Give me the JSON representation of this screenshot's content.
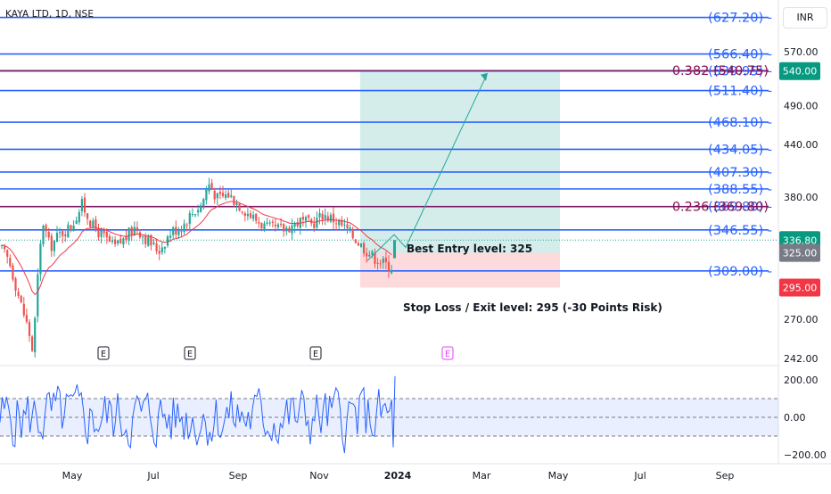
{
  "header": {
    "title": "KAYA LTD, 1D, NSE",
    "currency": "INR"
  },
  "colors": {
    "level_line": "#2962ff",
    "fib_line": "#880e4f",
    "candle_up": "#26a69a",
    "candle_down": "#ef5350",
    "ema": "#f23645",
    "target_zone": "#26a69a",
    "stop_zone": "#f23645",
    "oscillator": "#2962ff",
    "earnings_future": "#e040fb"
  },
  "chart_data": {
    "type": "candlestick",
    "xaxis_labels": [
      "May",
      "Jul",
      "Sep",
      "Nov",
      "2024",
      "Mar",
      "May",
      "Jul",
      "Sep"
    ],
    "price_axis_ticks": [
      "570.00",
      "490.00",
      "440.00",
      "380.00",
      "270.00",
      "242.00"
    ],
    "scale": "log",
    "levels": [
      "(627.20)",
      "(566.40)",
      "(539.95)",
      "(511.40)",
      "(468.10)",
      "(434.05)",
      "(407.30)",
      "(388.55)",
      "(369.80)",
      "(346.55)",
      "(309.00)"
    ],
    "level_values": [
      627.2,
      566.4,
      539.95,
      511.4,
      468.1,
      434.05,
      407.3,
      388.55,
      369.8,
      346.55,
      309.0
    ],
    "fib_levels": [
      {
        "label": "0.382 (540.75)",
        "value": 540.75
      },
      {
        "label": "0.236 (369.80)",
        "value": 369.8
      }
    ],
    "price_tags": [
      {
        "label": "540.00",
        "value": 540.0,
        "color": "#089981"
      },
      {
        "label": "336.80",
        "value": 336.8,
        "color": "#089981"
      },
      {
        "label": "325.00",
        "value": 325.0,
        "color": "#787b86"
      },
      {
        "label": "295.00",
        "value": 295.0,
        "color": "#f23645"
      }
    ],
    "position": {
      "entry": 325,
      "target": 540,
      "stop": 295,
      "entry_label": "Best Entry level: 325",
      "stop_label": "Stop Loss / Exit level: 295 (-30 Points Risk)"
    },
    "last_close": 336.8,
    "earnings_markers": [
      "E",
      "E",
      "E",
      "E"
    ],
    "oscillator": {
      "ticks": [
        "200.00",
        "0.00",
        "−200.00"
      ],
      "band": [
        -100,
        100
      ]
    }
  }
}
